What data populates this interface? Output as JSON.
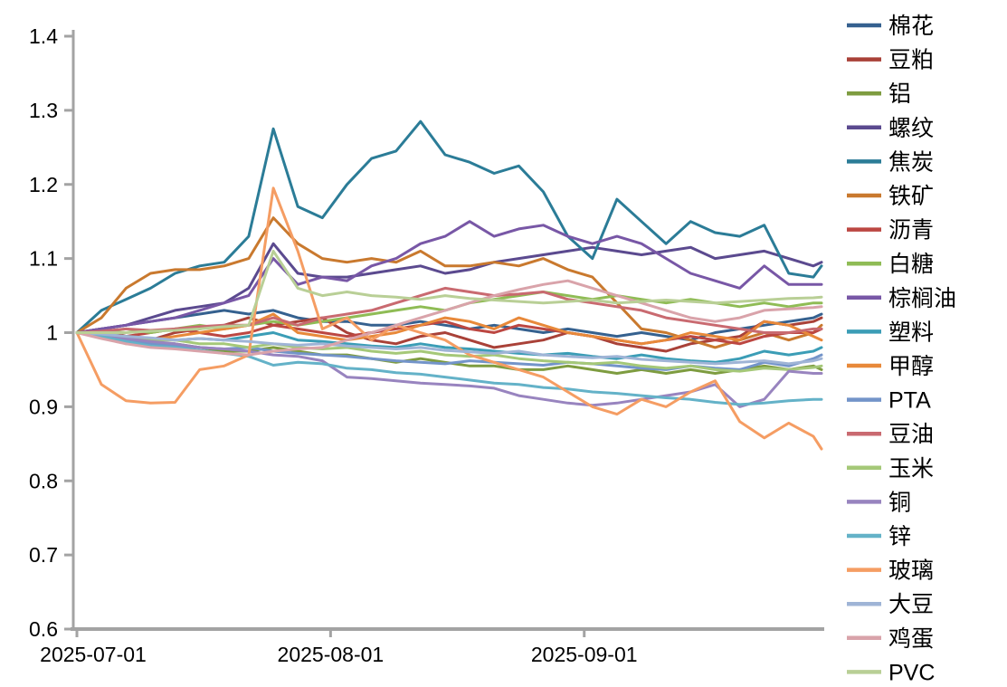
{
  "chart_data": {
    "type": "line",
    "title": "",
    "xlabel": "",
    "ylabel": "",
    "grid": false,
    "legend_position": "right",
    "ylim": [
      0.6,
      1.4
    ],
    "yticks": [
      0.6,
      0.7,
      0.8,
      0.9,
      1,
      1.1,
      1.2,
      1.3,
      1.4
    ],
    "xticks": [
      "2025-07-01",
      "2025-08-01",
      "2025-09-01"
    ],
    "axis_color": "#a3a3a3",
    "x_dates": [
      "2025-07-01",
      "2025-07-04",
      "2025-07-07",
      "2025-07-10",
      "2025-07-13",
      "2025-07-16",
      "2025-07-19",
      "2025-07-22",
      "2025-07-25",
      "2025-07-28",
      "2025-07-31",
      "2025-08-03",
      "2025-08-06",
      "2025-08-09",
      "2025-08-12",
      "2025-08-15",
      "2025-08-18",
      "2025-08-21",
      "2025-08-24",
      "2025-08-27",
      "2025-08-30",
      "2025-09-02",
      "2025-09-05",
      "2025-09-08",
      "2025-09-11",
      "2025-09-14",
      "2025-09-17",
      "2025-09-20",
      "2025-09-23",
      "2025-09-26",
      "2025-09-29",
      "2025-09-30"
    ],
    "series": [
      {
        "name": "棉花",
        "color": "#35618F",
        "values": [
          1.0,
          1.005,
          1.01,
          1.015,
          1.02,
          1.025,
          1.03,
          1.025,
          1.03,
          1.02,
          1.015,
          1.015,
          1.01,
          1.01,
          1.015,
          1.01,
          1.005,
          1.01,
          1.005,
          1.0,
          1.005,
          1.0,
          0.995,
          1.0,
          0.995,
          0.99,
          1.0,
          1.005,
          1.01,
          1.015,
          1.02,
          1.025
        ]
      },
      {
        "name": "豆粕",
        "color": "#A94138",
        "values": [
          1.0,
          1.005,
          0.995,
          0.99,
          1.0,
          1.005,
          1.01,
          1.02,
          1.01,
          1.015,
          1.02,
          1.0,
          0.99,
          0.985,
          0.995,
          1.0,
          0.99,
          0.98,
          0.985,
          0.99,
          1.0,
          0.995,
          0.985,
          0.98,
          0.975,
          0.985,
          0.99,
          0.995,
          1.015,
          1.01,
          1.015,
          1.02
        ]
      },
      {
        "name": "铝",
        "color": "#7E9C40",
        "values": [
          1.0,
          0.995,
          0.99,
          0.985,
          0.985,
          0.98,
          0.975,
          0.975,
          0.98,
          0.975,
          0.97,
          0.97,
          0.965,
          0.96,
          0.965,
          0.96,
          0.955,
          0.955,
          0.95,
          0.95,
          0.955,
          0.95,
          0.945,
          0.95,
          0.945,
          0.95,
          0.945,
          0.95,
          0.955,
          0.95,
          0.955,
          0.95
        ]
      },
      {
        "name": "螺纹",
        "color": "#5B4A8F",
        "values": [
          1.0,
          1.005,
          1.01,
          1.02,
          1.03,
          1.035,
          1.04,
          1.06,
          1.12,
          1.08,
          1.075,
          1.075,
          1.08,
          1.085,
          1.09,
          1.08,
          1.085,
          1.095,
          1.1,
          1.105,
          1.11,
          1.115,
          1.11,
          1.105,
          1.11,
          1.115,
          1.1,
          1.105,
          1.11,
          1.1,
          1.09,
          1.095
        ]
      },
      {
        "name": "焦炭",
        "color": "#2B7C97",
        "values": [
          1.0,
          1.03,
          1.045,
          1.06,
          1.08,
          1.09,
          1.095,
          1.13,
          1.275,
          1.17,
          1.155,
          1.2,
          1.235,
          1.245,
          1.285,
          1.24,
          1.23,
          1.215,
          1.225,
          1.19,
          1.13,
          1.1,
          1.18,
          1.15,
          1.12,
          1.15,
          1.135,
          1.13,
          1.145,
          1.08,
          1.075,
          1.09
        ]
      },
      {
        "name": "铁矿",
        "color": "#C9792E",
        "values": [
          1.0,
          1.02,
          1.06,
          1.08,
          1.085,
          1.085,
          1.09,
          1.1,
          1.155,
          1.12,
          1.1,
          1.095,
          1.1,
          1.095,
          1.11,
          1.09,
          1.09,
          1.095,
          1.09,
          1.1,
          1.085,
          1.075,
          1.04,
          1.005,
          1.0,
          0.99,
          0.98,
          0.99,
          1.0,
          0.99,
          1.0,
          1.01
        ]
      },
      {
        "name": "沥青",
        "color": "#BC4742",
        "values": [
          1.0,
          1.0,
          0.995,
          1.0,
          1.005,
          1.0,
          0.995,
          1.0,
          1.01,
          1.005,
          1.0,
          0.995,
          1.0,
          1.005,
          1.01,
          1.015,
          1.005,
          1.0,
          1.01,
          1.005,
          1.0,
          0.995,
          0.99,
          0.985,
          0.99,
          0.995,
          0.99,
          0.985,
          0.995,
          1.0,
          1.0,
          1.005
        ]
      },
      {
        "name": "白糖",
        "color": "#8FBC55",
        "values": [
          1.0,
          1.0,
          1.005,
          1.0,
          1.005,
          1.01,
          1.005,
          1.01,
          1.015,
          1.01,
          1.015,
          1.02,
          1.025,
          1.03,
          1.035,
          1.03,
          1.04,
          1.045,
          1.05,
          1.055,
          1.05,
          1.045,
          1.05,
          1.045,
          1.04,
          1.045,
          1.04,
          1.035,
          1.04,
          1.035,
          1.04,
          1.04
        ]
      },
      {
        "name": "棕榈油",
        "color": "#7857A6",
        "values": [
          1.0,
          1.005,
          1.01,
          1.015,
          1.02,
          1.03,
          1.04,
          1.05,
          1.1,
          1.065,
          1.075,
          1.07,
          1.09,
          1.1,
          1.12,
          1.13,
          1.15,
          1.13,
          1.14,
          1.145,
          1.13,
          1.12,
          1.13,
          1.12,
          1.1,
          1.08,
          1.07,
          1.06,
          1.09,
          1.065,
          1.065,
          1.065
        ]
      },
      {
        "name": "塑料",
        "color": "#3B9DB6",
        "values": [
          1.0,
          0.998,
          0.995,
          0.992,
          0.99,
          0.992,
          0.99,
          0.995,
          1.0,
          0.99,
          0.988,
          0.985,
          0.982,
          0.98,
          0.985,
          0.98,
          0.978,
          0.975,
          0.972,
          0.97,
          0.972,
          0.968,
          0.965,
          0.97,
          0.965,
          0.962,
          0.96,
          0.965,
          0.975,
          0.97,
          0.975,
          0.98
        ]
      },
      {
        "name": "甲醇",
        "color": "#E8893A",
        "values": [
          1.0,
          0.995,
          0.985,
          0.99,
          0.995,
          1.0,
          1.005,
          1.01,
          1.025,
          1.0,
          0.995,
          0.99,
          0.995,
          1.0,
          1.01,
          1.02,
          1.015,
          1.005,
          1.02,
          1.01,
          1.0,
          0.995,
          0.99,
          0.985,
          0.99,
          1.0,
          0.995,
          0.99,
          1.015,
          1.01,
          0.995,
          0.99
        ]
      },
      {
        "name": "PTA",
        "color": "#7394C9",
        "values": [
          1.0,
          0.995,
          0.99,
          0.985,
          0.982,
          0.98,
          0.978,
          0.98,
          0.975,
          0.972,
          0.97,
          0.968,
          0.965,
          0.962,
          0.96,
          0.958,
          0.962,
          0.96,
          0.958,
          0.956,
          0.96,
          0.958,
          0.955,
          0.952,
          0.95,
          0.955,
          0.952,
          0.95,
          0.96,
          0.955,
          0.965,
          0.97
        ]
      },
      {
        "name": "豆油",
        "color": "#C96A70",
        "values": [
          1.0,
          1.002,
          1.005,
          1.003,
          1.005,
          1.008,
          1.01,
          1.01,
          1.02,
          1.01,
          1.02,
          1.025,
          1.03,
          1.04,
          1.05,
          1.06,
          1.055,
          1.05,
          1.052,
          1.055,
          1.045,
          1.04,
          1.035,
          1.03,
          1.02,
          1.015,
          1.01,
          1.005,
          1.0,
          1.0,
          1.005,
          1.005
        ]
      },
      {
        "name": "玉米",
        "color": "#A5C878",
        "values": [
          1.0,
          0.998,
          0.995,
          0.99,
          0.99,
          0.985,
          0.985,
          0.98,
          0.985,
          0.98,
          0.978,
          0.98,
          0.975,
          0.972,
          0.975,
          0.97,
          0.968,
          0.97,
          0.965,
          0.962,
          0.96,
          0.958,
          0.96,
          0.955,
          0.952,
          0.955,
          0.95,
          0.948,
          0.952,
          0.95,
          0.953,
          0.955
        ]
      },
      {
        "name": "铜",
        "color": "#9884BF",
        "values": [
          1.0,
          0.998,
          0.992,
          0.988,
          0.985,
          0.98,
          0.978,
          0.975,
          0.97,
          0.968,
          0.962,
          0.94,
          0.938,
          0.935,
          0.932,
          0.93,
          0.928,
          0.925,
          0.915,
          0.91,
          0.905,
          0.902,
          0.905,
          0.91,
          0.915,
          0.92,
          0.93,
          0.9,
          0.91,
          0.948,
          0.945,
          0.945
        ]
      },
      {
        "name": "锌",
        "color": "#64B2C8",
        "values": [
          1.0,
          0.995,
          0.988,
          0.982,
          0.98,
          0.976,
          0.972,
          0.968,
          0.956,
          0.96,
          0.958,
          0.952,
          0.95,
          0.946,
          0.944,
          0.94,
          0.936,
          0.932,
          0.93,
          0.926,
          0.924,
          0.92,
          0.918,
          0.915,
          0.912,
          0.91,
          0.906,
          0.903,
          0.905,
          0.908,
          0.91,
          0.91
        ]
      },
      {
        "name": "玻璃",
        "color": "#F59D63",
        "values": [
          1.0,
          0.93,
          0.908,
          0.905,
          0.906,
          0.95,
          0.955,
          0.97,
          1.195,
          1.11,
          1.005,
          1.02,
          0.99,
          1.01,
          1.0,
          0.99,
          0.97,
          0.96,
          0.95,
          0.94,
          0.92,
          0.9,
          0.89,
          0.91,
          0.9,
          0.92,
          0.935,
          0.88,
          0.858,
          0.878,
          0.86,
          0.843
        ]
      },
      {
        "name": "大豆",
        "color": "#9FB4D6",
        "values": [
          1.0,
          0.998,
          0.995,
          0.993,
          0.99,
          0.992,
          0.99,
          0.988,
          0.985,
          0.983,
          0.985,
          0.982,
          0.98,
          0.978,
          0.98,
          0.976,
          0.974,
          0.972,
          0.975,
          0.97,
          0.968,
          0.966,
          0.968,
          0.964,
          0.962,
          0.96,
          0.958,
          0.96,
          0.962,
          0.958,
          0.962,
          0.965
        ]
      },
      {
        "name": "鸡蛋",
        "color": "#D9A3AA",
        "values": [
          1.0,
          0.992,
          0.985,
          0.98,
          0.978,
          0.975,
          0.972,
          0.97,
          0.975,
          0.978,
          0.98,
          0.99,
          1.0,
          1.01,
          1.02,
          1.03,
          1.04,
          1.05,
          1.058,
          1.065,
          1.07,
          1.06,
          1.05,
          1.04,
          1.03,
          1.02,
          1.015,
          1.02,
          1.03,
          1.032,
          1.034,
          1.035
        ]
      },
      {
        "name": "PVC",
        "color": "#B9CF96",
        "values": [
          1.0,
          1.0,
          1.0,
          1.002,
          1.003,
          1.005,
          1.008,
          1.01,
          1.11,
          1.06,
          1.05,
          1.055,
          1.05,
          1.048,
          1.045,
          1.05,
          1.046,
          1.044,
          1.042,
          1.04,
          1.042,
          1.044,
          1.04,
          1.042,
          1.044,
          1.042,
          1.04,
          1.042,
          1.044,
          1.046,
          1.047,
          1.048
        ]
      }
    ]
  }
}
